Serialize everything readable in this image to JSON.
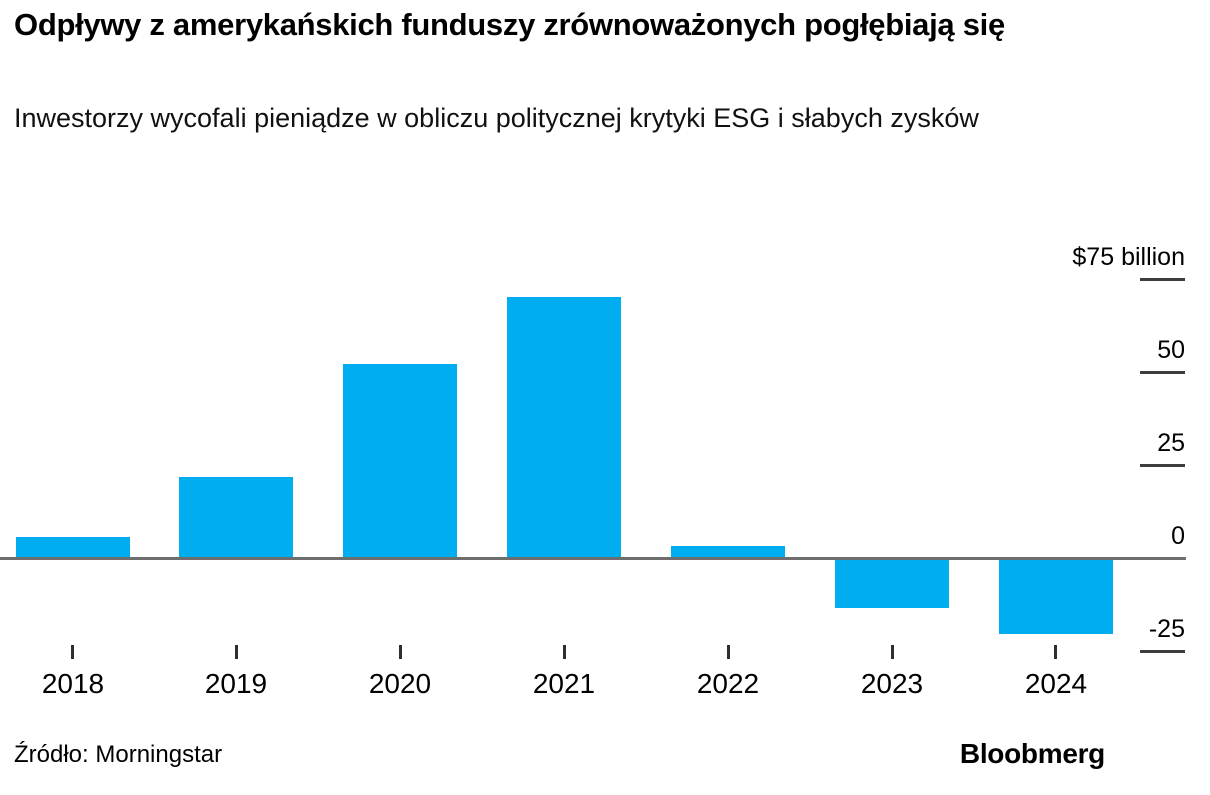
{
  "header": {
    "title": "Odpływy z amerykańskich funduszy zrównoważonych pogłębiają się",
    "subtitle": "Inwestorzy wycofali pieniądze w obliczu politycznej krytyki ESG i słabych zysków"
  },
  "chart_data": {
    "type": "bar",
    "title": "Odpływy z amerykańskich funduszy zrównoważonych pogłębiają się",
    "subtitle": "Inwestorzy wycofali pieniądze w obliczu politycznej krytyki ESG i słabych zysków",
    "categories": [
      "2018",
      "2019",
      "2020",
      "2021",
      "2022",
      "2023",
      "2024"
    ],
    "values": [
      5.5,
      21.5,
      52,
      70,
      3,
      -13,
      -20
    ],
    "unit_label": "$75 billion",
    "yticks": [
      {
        "value": 75,
        "label": "$75 billion"
      },
      {
        "value": 50,
        "label": "50"
      },
      {
        "value": 25,
        "label": "25"
      },
      {
        "value": 0,
        "label": "0"
      },
      {
        "value": -25,
        "label": "-25"
      }
    ],
    "ylim": [
      -30,
      80
    ],
    "grid": "right-side tick dashes only, zero baseline across full width",
    "legend": "none",
    "colors": {
      "bar": "#00adf1",
      "zero_line": "#6e6e6e",
      "tick_dash": "#3d3d3d",
      "x_tick": "#2f2f2f"
    }
  },
  "footer": {
    "source": "Źródło: Morningstar",
    "brand": "Bloobmerg"
  }
}
